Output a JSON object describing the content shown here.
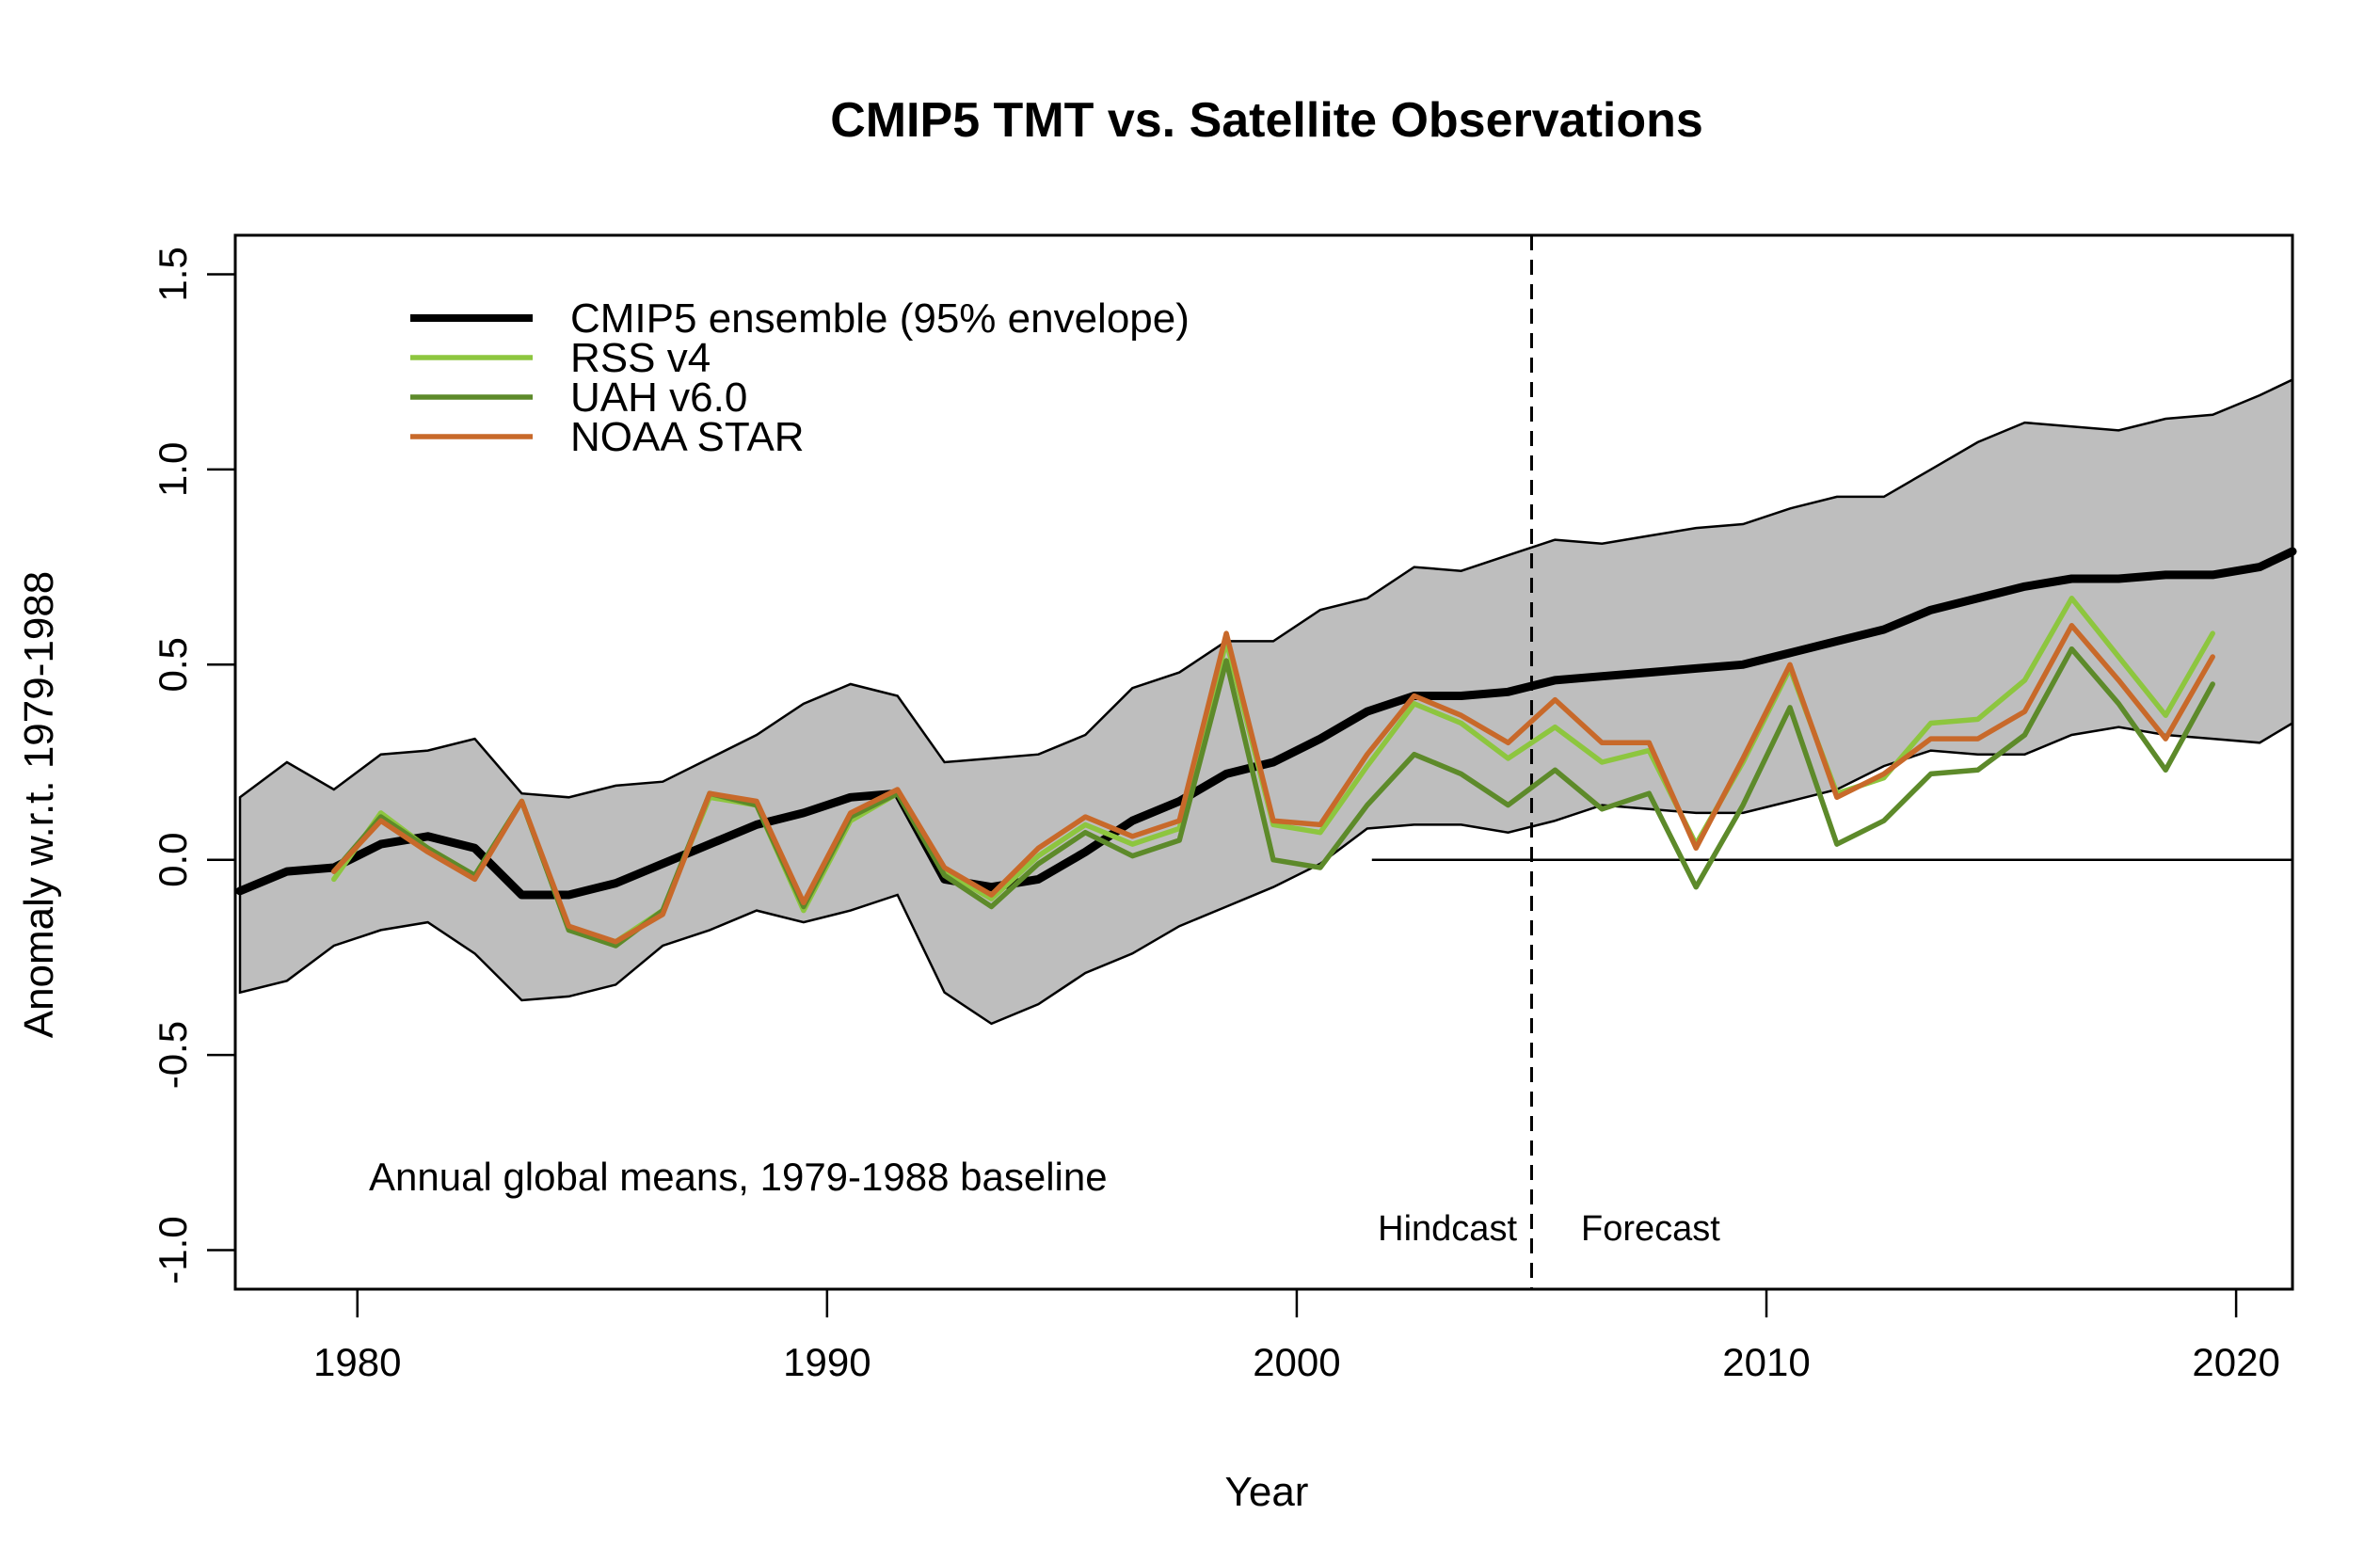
{
  "chart_data": {
    "type": "line",
    "title": "CMIP5 TMT vs. Satellite Observations",
    "xlabel": "Year",
    "ylabel": "Anomaly w.r.t. 1979-1988",
    "xlim": [
      1977.4,
      2021.2
    ],
    "ylim": [
      -1.1,
      1.6
    ],
    "x_ticks": [
      1980,
      1990,
      2000,
      2010,
      2020
    ],
    "y_ticks": [
      -1.0,
      -0.5,
      0.0,
      0.5,
      1.0,
      1.5
    ],
    "x_tick_labels": [
      "1980",
      "1990",
      "2000",
      "2010",
      "2020"
    ],
    "y_tick_labels": [
      "-1.0",
      "-0.5",
      "0.0",
      "0.5",
      "1.0",
      "1.5"
    ],
    "grid": false,
    "zero_line": true,
    "legend_position": "top-left",
    "annotation": "Annual global means, 1979-1988 baseline",
    "divider": {
      "x": 2005,
      "style": "dashed",
      "left_label": "Hindcast",
      "right_label": "Forecast"
    },
    "envelope": {
      "name": "CMIP5 ensemble (95% envelope)",
      "color": "#bebebe",
      "x": [
        1977.5,
        1978.5,
        1979.5,
        1980.5,
        1981.5,
        1982.5,
        1983.5,
        1984.5,
        1985.5,
        1986.5,
        1987.5,
        1988.5,
        1989.5,
        1990.5,
        1991.5,
        1992.5,
        1993.5,
        1994.5,
        1995.5,
        1996.5,
        1997.5,
        1998.5,
        1999.5,
        2000.5,
        2001.5,
        2002.5,
        2003.5,
        2004.5,
        2005.5,
        2006.5,
        2007.5,
        2008.5,
        2009.5,
        2010.5,
        2011.5,
        2012.5,
        2013.5,
        2014.5,
        2015.5,
        2016.5,
        2017.5,
        2018.5,
        2019.5,
        2020.5,
        2021.2
      ],
      "upper": [
        0.16,
        0.25,
        0.18,
        0.27,
        0.28,
        0.31,
        0.17,
        0.16,
        0.19,
        0.2,
        0.26,
        0.32,
        0.4,
        0.45,
        0.42,
        0.25,
        0.26,
        0.27,
        0.32,
        0.44,
        0.48,
        0.56,
        0.56,
        0.64,
        0.67,
        0.75,
        0.74,
        0.78,
        0.82,
        0.81,
        0.83,
        0.85,
        0.86,
        0.9,
        0.93,
        0.93,
        1.0,
        1.07,
        1.12,
        1.11,
        1.1,
        1.13,
        1.14,
        1.19,
        1.23
      ],
      "lower": [
        -0.34,
        -0.31,
        -0.22,
        -0.18,
        -0.16,
        -0.24,
        -0.36,
        -0.35,
        -0.32,
        -0.22,
        -0.18,
        -0.13,
        -0.16,
        -0.13,
        -0.09,
        -0.34,
        -0.42,
        -0.37,
        -0.29,
        -0.24,
        -0.17,
        -0.12,
        -0.07,
        -0.01,
        0.08,
        0.09,
        0.09,
        0.07,
        0.1,
        0.14,
        0.13,
        0.12,
        0.12,
        0.15,
        0.18,
        0.24,
        0.28,
        0.27,
        0.27,
        0.32,
        0.34,
        0.32,
        0.31,
        0.3,
        0.35
      ]
    },
    "series": [
      {
        "name": "CMIP5 ensemble (95% envelope)",
        "color": "#000000",
        "width": "thick",
        "x": [
          1977.5,
          1978.5,
          1979.5,
          1980.5,
          1981.5,
          1982.5,
          1983.5,
          1984.5,
          1985.5,
          1986.5,
          1987.5,
          1988.5,
          1989.5,
          1990.5,
          1991.5,
          1992.5,
          1993.5,
          1994.5,
          1995.5,
          1996.5,
          1997.5,
          1998.5,
          1999.5,
          2000.5,
          2001.5,
          2002.5,
          2003.5,
          2004.5,
          2005.5,
          2006.5,
          2007.5,
          2008.5,
          2009.5,
          2010.5,
          2011.5,
          2012.5,
          2013.5,
          2014.5,
          2015.5,
          2016.5,
          2017.5,
          2018.5,
          2019.5,
          2020.5,
          2021.2
        ],
        "values": [
          -0.08,
          -0.03,
          -0.02,
          0.04,
          0.06,
          0.03,
          -0.09,
          -0.09,
          -0.06,
          -0.01,
          0.04,
          0.09,
          0.12,
          0.16,
          0.17,
          -0.05,
          -0.07,
          -0.05,
          0.02,
          0.1,
          0.15,
          0.22,
          0.25,
          0.31,
          0.38,
          0.42,
          0.42,
          0.43,
          0.46,
          0.47,
          0.48,
          0.49,
          0.5,
          0.53,
          0.56,
          0.59,
          0.64,
          0.67,
          0.7,
          0.72,
          0.72,
          0.73,
          0.73,
          0.75,
          0.79
        ]
      },
      {
        "name": "RSS v4",
        "color": "#8dc63f",
        "width": "normal",
        "x": [
          1979.5,
          1980.5,
          1981.5,
          1982.5,
          1983.5,
          1984.5,
          1985.5,
          1986.5,
          1987.5,
          1988.5,
          1989.5,
          1990.5,
          1991.5,
          1992.5,
          1993.5,
          1994.5,
          1995.5,
          1996.5,
          1997.5,
          1998.5,
          1999.5,
          2000.5,
          2001.5,
          2002.5,
          2003.5,
          2004.5,
          2005.5,
          2006.5,
          2007.5,
          2008.5,
          2009.5,
          2010.5,
          2011.5,
          2012.5,
          2013.5,
          2014.5,
          2015.5,
          2016.5,
          2017.5,
          2018.5,
          2019.5
        ],
        "values": [
          -0.05,
          0.12,
          0.03,
          -0.04,
          0.15,
          -0.18,
          -0.21,
          -0.13,
          0.16,
          0.14,
          -0.13,
          0.1,
          0.17,
          -0.03,
          -0.1,
          0.01,
          0.09,
          0.04,
          0.08,
          0.56,
          0.09,
          0.07,
          0.24,
          0.4,
          0.35,
          0.26,
          0.34,
          0.25,
          0.28,
          0.04,
          0.25,
          0.49,
          0.17,
          0.21,
          0.35,
          0.36,
          0.46,
          0.67,
          0.52,
          0.37,
          0.58
        ]
      },
      {
        "name": "UAH v6.0",
        "color": "#5d8a2a",
        "width": "normal",
        "x": [
          1979.5,
          1980.5,
          1981.5,
          1982.5,
          1983.5,
          1984.5,
          1985.5,
          1986.5,
          1987.5,
          1988.5,
          1989.5,
          1990.5,
          1991.5,
          1992.5,
          1993.5,
          1994.5,
          1995.5,
          1996.5,
          1997.5,
          1998.5,
          1999.5,
          2000.5,
          2001.5,
          2002.5,
          2003.5,
          2004.5,
          2005.5,
          2006.5,
          2007.5,
          2008.5,
          2009.5,
          2010.5,
          2011.5,
          2012.5,
          2013.5,
          2014.5,
          2015.5,
          2016.5,
          2017.5,
          2018.5,
          2019.5
        ],
        "values": [
          -0.03,
          0.11,
          0.03,
          -0.04,
          0.15,
          -0.18,
          -0.22,
          -0.13,
          0.17,
          0.14,
          -0.12,
          0.11,
          0.17,
          -0.04,
          -0.12,
          -0.01,
          0.07,
          0.01,
          0.05,
          0.51,
          0.0,
          -0.02,
          0.14,
          0.27,
          0.22,
          0.14,
          0.23,
          0.13,
          0.17,
          -0.07,
          0.14,
          0.39,
          0.04,
          0.1,
          0.22,
          0.23,
          0.32,
          0.54,
          0.4,
          0.23,
          0.45
        ]
      },
      {
        "name": "NOAA STAR",
        "color": "#c8692a",
        "width": "normal",
        "x": [
          1979.5,
          1980.5,
          1981.5,
          1982.5,
          1983.5,
          1984.5,
          1985.5,
          1986.5,
          1987.5,
          1988.5,
          1989.5,
          1990.5,
          1991.5,
          1992.5,
          1993.5,
          1994.5,
          1995.5,
          1996.5,
          1997.5,
          1998.5,
          1999.5,
          2000.5,
          2001.5,
          2002.5,
          2003.5,
          2004.5,
          2005.5,
          2006.5,
          2007.5,
          2008.5,
          2009.5,
          2010.5,
          2011.5,
          2012.5,
          2013.5,
          2014.5,
          2015.5,
          2016.5,
          2017.5,
          2018.5,
          2019.5
        ],
        "values": [
          -0.03,
          0.1,
          0.02,
          -0.05,
          0.15,
          -0.17,
          -0.21,
          -0.14,
          0.17,
          0.15,
          -0.11,
          0.12,
          0.18,
          -0.02,
          -0.09,
          0.03,
          0.11,
          0.06,
          0.1,
          0.58,
          0.1,
          0.09,
          0.27,
          0.42,
          0.37,
          0.3,
          0.41,
          0.3,
          0.3,
          0.03,
          0.26,
          0.5,
          0.16,
          0.22,
          0.31,
          0.31,
          0.38,
          0.6,
          0.46,
          0.31,
          0.52
        ]
      }
    ]
  }
}
